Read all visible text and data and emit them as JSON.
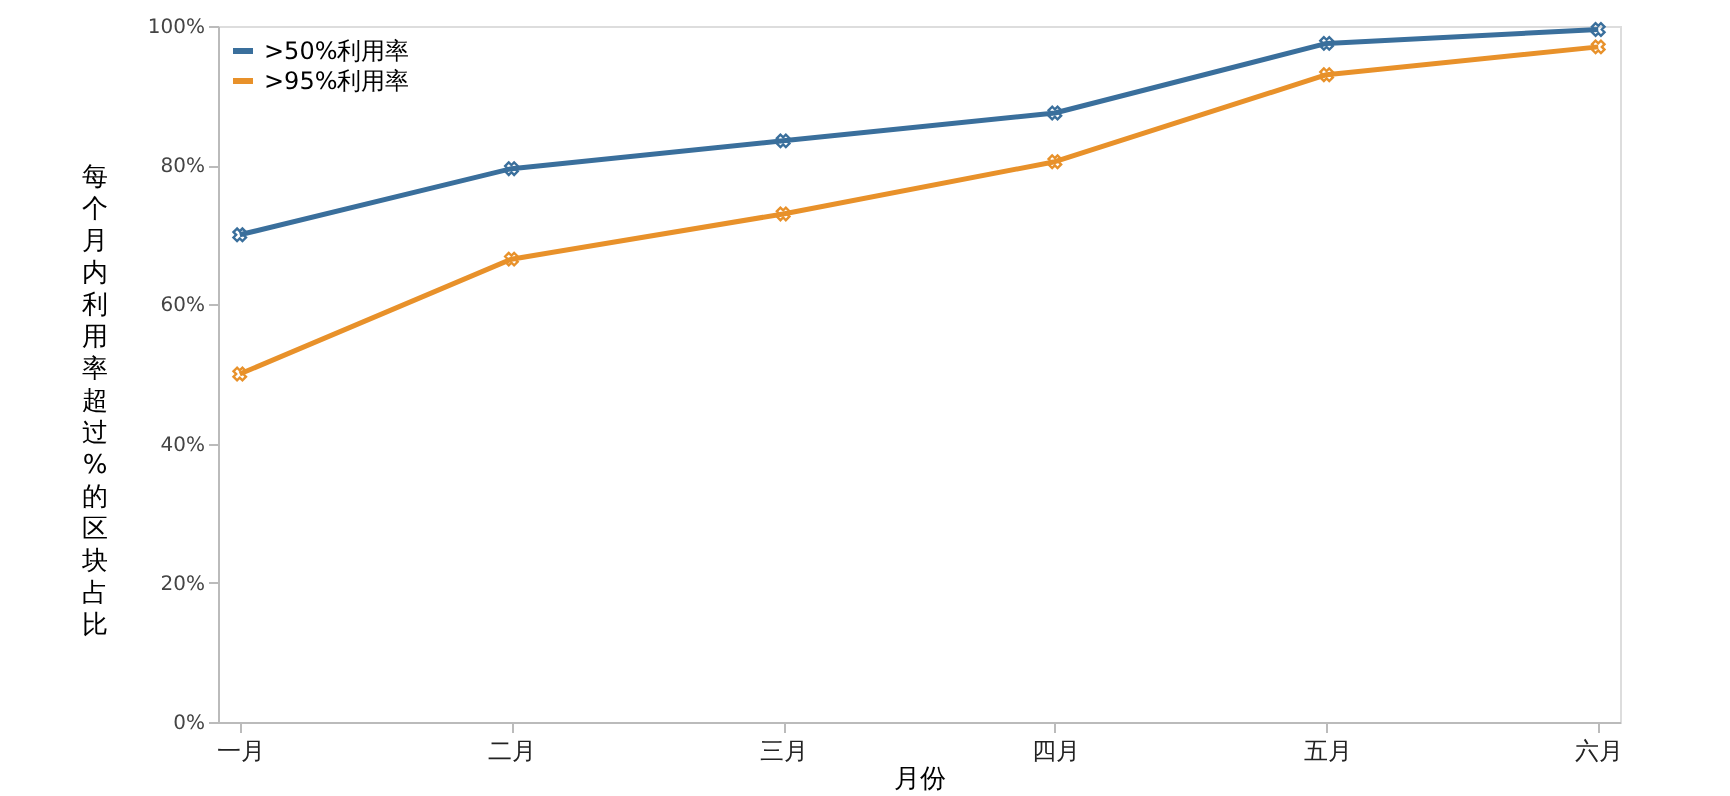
{
  "chart_data": {
    "type": "line",
    "xlabel": "月份",
    "ylabel": "每个月内利用率超过%的区块占比",
    "categories": [
      "一月",
      "二月",
      "三月",
      "四月",
      "五月",
      "六月"
    ],
    "series": [
      {
        "name": ">50%利用率",
        "color": "#3a6f9c",
        "values": [
          70,
          79.5,
          83.5,
          87.5,
          97.5,
          99.5
        ]
      },
      {
        "name": ">95%利用率",
        "color": "#e8912a",
        "values": [
          50,
          66.5,
          73,
          80.5,
          93,
          97
        ]
      }
    ],
    "ylim": [
      0,
      100
    ],
    "yticks": [
      {
        "value": 0,
        "label": "0%"
      },
      {
        "value": 20,
        "label": "20%"
      },
      {
        "value": 40,
        "label": "40%"
      },
      {
        "value": 60,
        "label": "60%"
      },
      {
        "value": 80,
        "label": "80%"
      },
      {
        "value": 100,
        "label": "100%"
      }
    ],
    "marker": "cross",
    "line_style": "solid",
    "legend": "top left",
    "grid": false
  }
}
